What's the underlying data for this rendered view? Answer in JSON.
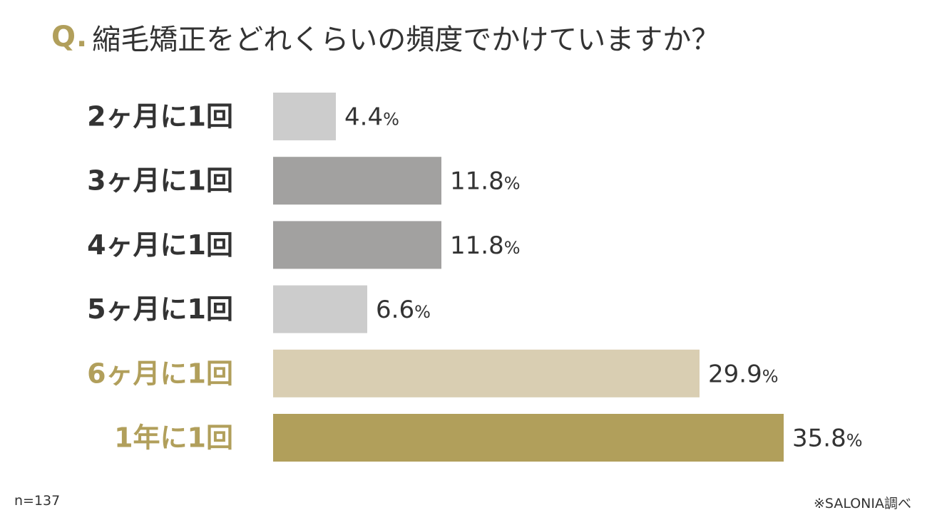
{
  "question": {
    "prefix": "Q.",
    "text": "縮毛矯正をどれくらいの頻度でかけていますか？"
  },
  "chart_data": {
    "type": "bar",
    "orientation": "horizontal",
    "unit": "%",
    "categories": [
      "2ヶ月に1回",
      "3ヶ月に1回",
      "4ヶ月に1回",
      "5ヶ月に1回",
      "6ヶ月に1回",
      "1年に1回"
    ],
    "values": [
      4.4,
      11.8,
      11.8,
      6.6,
      29.9,
      35.8
    ],
    "value_labels": [
      "4.4",
      "11.8",
      "11.8",
      "6.6",
      "29.9",
      "35.8"
    ],
    "bar_colors": [
      "#cccccc",
      "#a2a1a0",
      "#a2a1a0",
      "#cccccc",
      "#d9ceb2",
      "#b19f5b"
    ],
    "label_colors": [
      "#333333",
      "#333333",
      "#333333",
      "#333333",
      "#b19f5b",
      "#b19f5b"
    ],
    "xlim": [
      0,
      35.8
    ],
    "grid": false,
    "legend": "none"
  },
  "colors": {
    "accent": "#b19f5b",
    "text": "#333333"
  },
  "footer": {
    "sample_size": "n=137",
    "source": "※SALONIA調べ"
  }
}
